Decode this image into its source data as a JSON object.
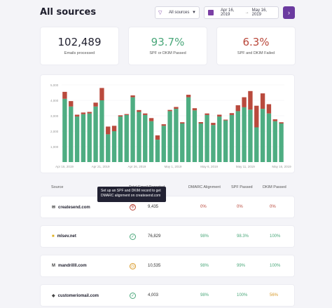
{
  "header": {
    "title": "All sources",
    "filter_label": "All sources",
    "date_start": "Apr 16, 2019",
    "date_sep": "→",
    "date_end": "May 16, 2019",
    "go_icon": "arrow-right-icon"
  },
  "stats": [
    {
      "value": "102,489",
      "label": "Emails processed"
    },
    {
      "value": "93.7%",
      "label": "SPF or DKIM Passed"
    },
    {
      "value": "6.3%",
      "label": "SPF and DKIM Failed"
    }
  ],
  "chart_data": {
    "type": "bar",
    "stacked": true,
    "y_ticks": [
      "5,000",
      "4,000",
      "3,000",
      "2,000",
      "1,000"
    ],
    "x_ticks": [
      "Apr 16, 2019",
      "Apr 21, 2019",
      "Apr 26, 2019",
      "May 1, 2019",
      "May 6, 2019",
      "May 11, 2019",
      "May 16, 2019"
    ],
    "ylim": [
      0,
      5000
    ],
    "colors": {
      "passed": "#4ead82",
      "failed": "#b94a3d"
    },
    "series": [
      {
        "values": [
          4100,
          3600,
          2950,
          3100,
          3150,
          3600,
          4000,
          1800,
          2000,
          2950,
          3050,
          4200,
          3250,
          3050,
          2650,
          1450,
          2350,
          3300,
          3450,
          2500,
          4200,
          3350,
          2500,
          3050,
          2400,
          2950,
          2700,
          3050,
          3300,
          3550,
          3400,
          2250,
          3450,
          3150,
          2650,
          2500
        ]
      },
      {
        "values": [
          450,
          350,
          120,
          110,
          100,
          250,
          800,
          500,
          350,
          80,
          60,
          120,
          120,
          100,
          200,
          280,
          100,
          80,
          120,
          80,
          160,
          140,
          90,
          100,
          140,
          120,
          50,
          120,
          380,
          650,
          1200,
          1400,
          1000,
          600,
          120,
          80
        ]
      }
    ]
  },
  "table": {
    "columns": [
      "Source",
      "Total Email Reported",
      "DMARC Alignment",
      "SPF Passed",
      "DKIM Passed"
    ],
    "tooltip": "Set up an SPF and DKIM record to get DMARC alignment on createsend.com",
    "rows": [
      {
        "icon": "mail-icon",
        "glyph": "✉",
        "source": "createsend.com",
        "status_icon": "shield-icon",
        "status": "⛨",
        "total": "9,435",
        "dmarc": "0%",
        "spf": "0%",
        "dkim": "0%"
      },
      {
        "icon": "square-logo-icon",
        "glyph": "■",
        "source": "mlsev.net",
        "status_icon": "shield-check-icon",
        "status": "✓",
        "total": "76,829",
        "dmarc": "98%",
        "spf": "98.3%",
        "dkim": "100%"
      },
      {
        "icon": "monkey-logo-icon",
        "glyph": "M",
        "source": "mandrillll.com",
        "status_icon": "clock-icon",
        "status": "◷",
        "total": "10,535",
        "dmarc": "98%",
        "spf": "99%",
        "dkim": "100%"
      },
      {
        "icon": "shield-logo-icon",
        "glyph": "◆",
        "source": "customeriomail.com",
        "status_icon": "shield-check-icon",
        "status": "✓",
        "total": "4,003",
        "dmarc": "98%",
        "spf": "100%",
        "dkim": "56%"
      }
    ]
  }
}
